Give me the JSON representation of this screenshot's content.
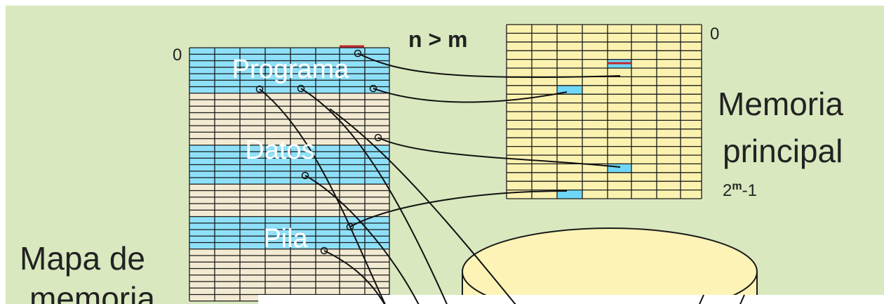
{
  "map_label": {
    "zero": "0",
    "title_line1": "Mapa de",
    "title_line2": "memoria"
  },
  "segments": {
    "program": "Programa",
    "data": "Datos",
    "stack": "Pila"
  },
  "main_memory": {
    "condition": "n > m",
    "zero": "0",
    "last_base": "2",
    "last_exp": "m",
    "last_suffix": "-1",
    "title_line1": "Memoria",
    "title_line2": "principal"
  },
  "colors": {
    "background": "#d9e8bf",
    "map_blue": "#8ee0f8",
    "map_beige": "#f2ead2",
    "memory_yellow": "#fcf2b0",
    "memory_blue": "#6fd8f8",
    "disk_yellow": "#fdf3b6",
    "red_mark": "#c0282f"
  }
}
